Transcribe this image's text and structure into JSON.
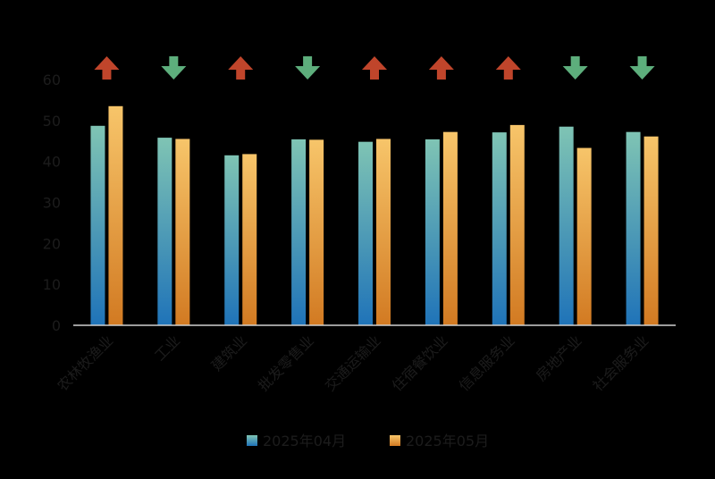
{
  "chart_data": {
    "type": "bar",
    "categories": [
      "农林牧渔业",
      "工业",
      "建筑业",
      "批发零售业",
      "交通运输业",
      "住宿餐饮业",
      "信息服务业",
      "房地产业",
      "社会服务业"
    ],
    "series": [
      {
        "name": "2025年04月",
        "values": [
          48.7,
          45.8,
          41.5,
          45.4,
          44.8,
          45.4,
          47.1,
          48.5,
          47.2
        ]
      },
      {
        "name": "2025年05月",
        "values": [
          53.5,
          45.5,
          41.8,
          45.3,
          45.5,
          47.2,
          48.9,
          43.3,
          46.1
        ]
      }
    ],
    "trend_arrows": [
      "up",
      "down",
      "up",
      "down",
      "up",
      "up",
      "up",
      "down",
      "down"
    ],
    "yticks": [
      0,
      10,
      20,
      30,
      40,
      50,
      60
    ],
    "ylim": [
      0,
      60
    ],
    "legend_position": "bottom",
    "grid": false,
    "colors": {
      "series1_top": "#7fc4b4",
      "series1_bottom": "#1f73b8",
      "series2_top": "#f7c56a",
      "series2_bottom": "#d27a22",
      "arrow_up": "#c0452b",
      "arrow_down": "#5dae7c",
      "axis": "#cfcfcf",
      "text": "#1c1c1c"
    }
  }
}
